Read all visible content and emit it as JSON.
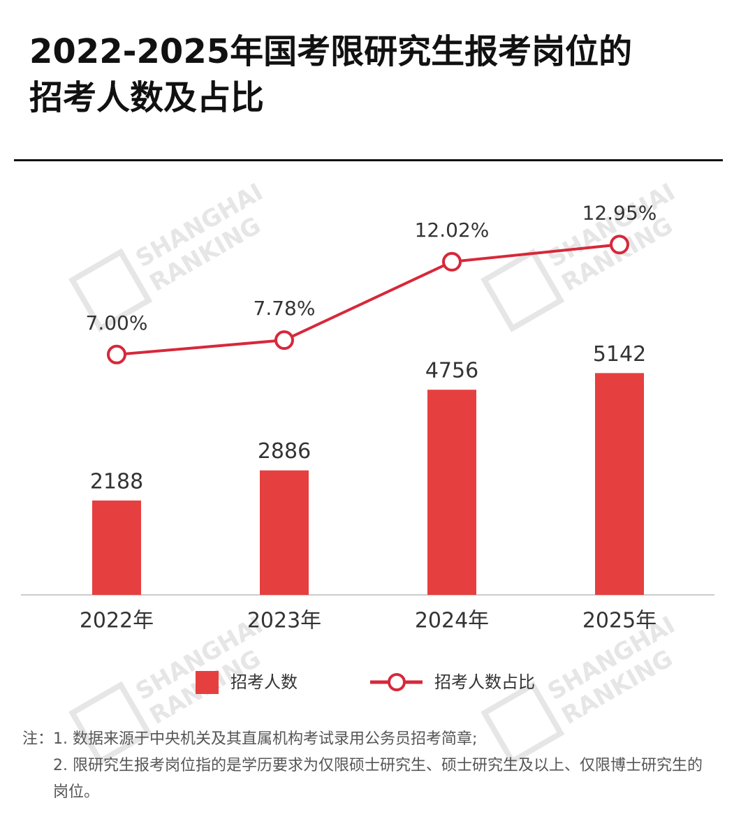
{
  "title": [
    "2022-2025年国考限研究生报考岗位的",
    "招考人数及占比"
  ],
  "chart_data": {
    "type": "combo",
    "categories": [
      "2022年",
      "2023年",
      "2024年",
      "2025年"
    ],
    "series": [
      {
        "name": "招考人数",
        "type": "bar",
        "color": "#e5403f",
        "values": [
          2188,
          2886,
          4756,
          5142
        ]
      },
      {
        "name": "招考人数占比",
        "type": "line",
        "axis": "y2",
        "color": "#d7283a",
        "values": [
          7.0,
          7.78,
          12.02,
          12.95
        ],
        "value_labels": [
          "7.00%",
          "7.78%",
          "12.02%",
          "12.95%"
        ]
      }
    ],
    "ylim": [
      0,
      9000
    ],
    "y2lim": [
      -6,
      15
    ]
  },
  "watermark": [
    "SHANGHAI",
    "RANKING"
  ],
  "notes": {
    "prefix": "注：",
    "items": [
      "1. 数据来源于中央机关及其直属机构考试录用公务员招考简章;",
      "2. 限研究生报考岗位指的是学历要求为仅限硕士研究生、硕士研究生及以上、仅限博士研究生的岗位。"
    ]
  }
}
